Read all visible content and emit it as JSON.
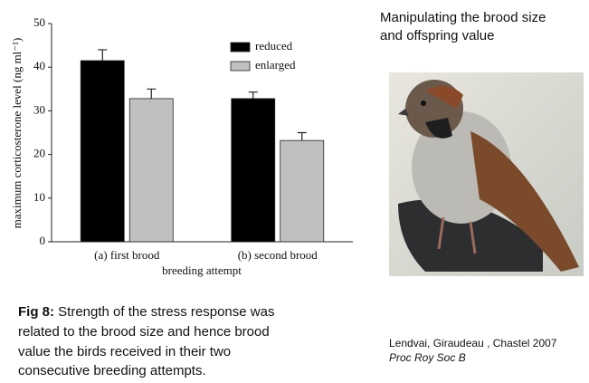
{
  "chart_data": {
    "type": "bar",
    "categories": [
      "(a) first brood",
      "(b) second brood"
    ],
    "series": [
      {
        "name": "reduced",
        "color": "#000000",
        "values": [
          41.5,
          32.8
        ],
        "errors": [
          2.5,
          1.5
        ]
      },
      {
        "name": "enlarged",
        "color": "#c0c0c0",
        "values": [
          32.8,
          23.2
        ],
        "errors": [
          2.2,
          1.8
        ]
      }
    ],
    "ylim": [
      0,
      50
    ],
    "yticks": [
      0,
      10,
      20,
      30,
      40,
      50
    ],
    "y_label": "maximum corticosterone level (ng ml⁻¹)",
    "x_label": "breeding attempt",
    "legend": "top-right",
    "grid": false
  },
  "heading": [
    "Manipulating the brood size",
    "and offspring value"
  ],
  "caption": {
    "label": "Fig 8:",
    "lines": [
      " Strength of the stress response was",
      "related to the brood size and hence brood",
      "value the birds received in their two",
      "consecutive breeding attempts."
    ]
  },
  "citation": {
    "authors": "Lendvai, Giraudeau , Chastel 2007",
    "journal": "Proc Roy Soc B"
  }
}
